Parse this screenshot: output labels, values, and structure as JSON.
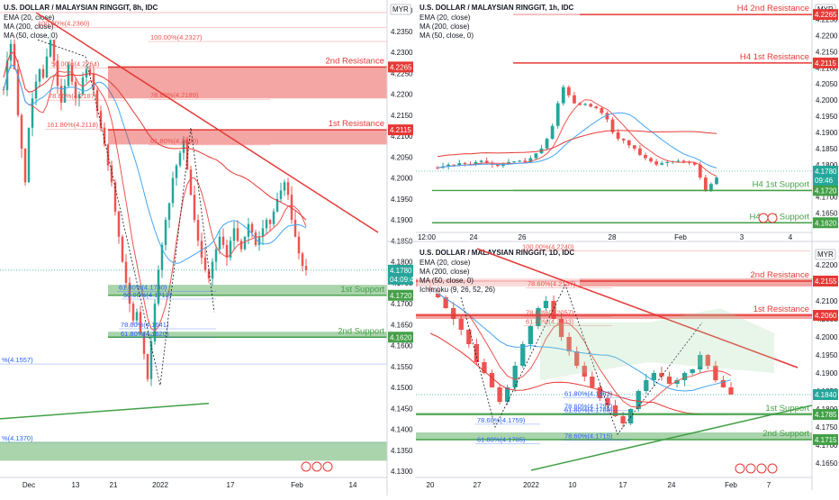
{
  "chart_data": [
    {
      "type": "candlestick",
      "title": "U.S. DOLLAR / MALAYSIAN RINGGIT, 8h, IDC",
      "currency": "MYR",
      "indicators": [
        "EMA (20, close)",
        "MA (200, close)",
        "MA (50, close, 0)"
      ],
      "x_ticks": [
        "Dec",
        "13",
        "21",
        "2022",
        "17",
        "Feb",
        "14"
      ],
      "y_ticks": [
        "4.1300",
        "4.1350",
        "4.1400",
        "4.1450",
        "4.1500",
        "4.1550",
        "4.1600",
        "4.1650",
        "4.1700",
        "4.1750",
        "4.1800",
        "4.1850",
        "4.1900",
        "4.1950",
        "4.2000",
        "4.2050",
        "4.2100",
        "4.2150",
        "4.2200",
        "4.2250",
        "4.2300",
        "4.2350",
        "4.2400"
      ],
      "ylim": [
        4.1285,
        4.2425
      ],
      "levels": [
        {
          "label": "2nd Resistance",
          "price": "4.2265",
          "value": 4.2265,
          "zone": [
            4.219,
            4.2265
          ],
          "color": "#e53935"
        },
        {
          "label": "1st Resistance",
          "price": "4.2115",
          "value": 4.2115,
          "zone": [
            4.208,
            4.2115
          ],
          "color": "#e53935"
        },
        {
          "label": "1st Support",
          "price": "4.1720",
          "value": 4.172,
          "zone": [
            4.172,
            4.1745
          ],
          "color": "#43a047"
        },
        {
          "label": "2nd Support",
          "price": "4.1620",
          "value": 4.162,
          "zone": [
            4.162,
            4.1633
          ],
          "color": "#43a047"
        }
      ],
      "current_price": "4.1780",
      "countdown": "04:09:46",
      "fib_labels": [
        "100.00%(4.2360)",
        "100.00%(4.2327)",
        "50.00%(4.2264)",
        "78.60%(4.2189)",
        "78.60%(4.2187)",
        "161.80%(4.2118)",
        "61.80%(4.2080)",
        "61.80%(4.1730)",
        "50.00%(4.1712)",
        "78.60%(4.1641)",
        "61.80%(4.1620)",
        "%(4.1557)",
        "%(4.1370)"
      ]
    },
    {
      "type": "candlestick",
      "title": "U.S. DOLLAR / MALAYSIAN RINGGIT, 1h, IDC",
      "currency": "MYR",
      "indicators": [
        "EMA (20, close)",
        "MA (200, close)",
        "MA (50, close, 0)"
      ],
      "x_ticks": [
        "12:00",
        "24",
        "26",
        "28",
        "Feb",
        "3",
        "4"
      ],
      "y_ticks": [
        "4.1650",
        "4.1700",
        "4.1750",
        "4.1800",
        "4.1850",
        "4.1900",
        "4.1950",
        "4.2000",
        "4.2050",
        "4.2100",
        "4.2150",
        "4.2200",
        "4.2250"
      ],
      "ylim": [
        4.159,
        4.231
      ],
      "levels": [
        {
          "label": "H4 2nd Resistance",
          "price": "4.2265",
          "value": 4.2265,
          "color": "#e53935"
        },
        {
          "label": "H4 1st Resistance",
          "price": "4.2115",
          "value": 4.2115,
          "color": "#e53935"
        },
        {
          "label": "H4 1st Support",
          "price": "4.1720",
          "value": 4.172,
          "color": "#43a047"
        },
        {
          "label": "H4 2nd Support",
          "price": "4.1620",
          "value": 4.162,
          "color": "#43a047"
        }
      ],
      "current_price": "4.1780",
      "countdown": "09:46"
    },
    {
      "type": "candlestick",
      "title": "U.S. DOLLAR / MALAYSIAN RINGGIT, 1D, IDC",
      "currency": "MYR",
      "indicators": [
        "EMA (20, close)",
        "MA (200, close)",
        "MA (50, close, 0)",
        "Ichimoku (9, 26, 52, 26)"
      ],
      "x_ticks": [
        "20",
        "27",
        "2022",
        "10",
        "17",
        "24",
        "Feb",
        "7"
      ],
      "y_ticks": [
        "4.1650",
        "4.1700",
        "4.1750",
        "4.1800",
        "4.1850",
        "4.1900",
        "4.1950",
        "4.2000",
        "4.2050",
        "4.2100",
        "4.2150",
        "4.2200"
      ],
      "ylim": [
        4.161,
        4.2255
      ],
      "levels": [
        {
          "label": "2nd Resistance",
          "price": "4.2155",
          "value": 4.2155,
          "zone": [
            4.214,
            4.2162
          ],
          "color": "#e53935"
        },
        {
          "label": "1st Resistance",
          "price": "4.2060",
          "value": 4.206,
          "zone": [
            4.205,
            4.2065
          ],
          "color": "#e53935"
        },
        {
          "label": "1st Support",
          "price": "4.1785",
          "value": 4.1785,
          "zone": [
            4.1785,
            4.179
          ],
          "color": "#43a047"
        },
        {
          "label": "2nd Support",
          "price": "4.1715",
          "value": 4.1715,
          "zone": [
            4.1715,
            4.1735
          ],
          "color": "#43a047"
        }
      ],
      "current_price": "4.1840",
      "fib_labels": [
        "100.00%(4.2240)",
        "78.60%(4.2137)",
        "78.60%(4.2057)",
        "61.80%(4.2033)",
        "61.80%(4.1833)",
        "78.60%(4.1797)",
        "61.80%(4.1788)",
        "78.60%(4.1759)",
        "61.80%(4.1705)",
        "78.60%(4.1715)"
      ]
    }
  ],
  "colors": {
    "up": "#26a69a",
    "down": "#ef5350",
    "resistance": "#e53935",
    "support": "#43a047"
  }
}
